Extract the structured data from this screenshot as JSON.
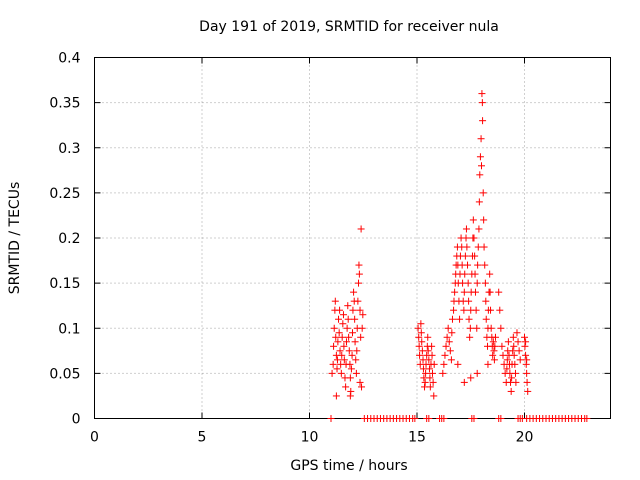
{
  "chart_data": {
    "type": "scatter",
    "title": "Day 191 of 2019, SRMTID for receiver nula",
    "xlabel": "GPS time / hours",
    "ylabel": "SRMTID / TECUs",
    "xlim": [
      0,
      24
    ],
    "ylim": [
      0,
      0.4
    ],
    "grid": true,
    "marker": "+",
    "marker_color": "#ff0000",
    "x_ticks": [
      0,
      5,
      10,
      15,
      20
    ],
    "x_tick_labels": [
      "0",
      "5",
      "10",
      "15",
      "20"
    ],
    "y_ticks": [
      0,
      0.05,
      0.1,
      0.15,
      0.2,
      0.25,
      0.3,
      0.35,
      0.4
    ],
    "y_tick_labels": [
      "0",
      "0.05",
      "0.1",
      "0.15",
      "0.2",
      "0.25",
      "0.3",
      "0.35",
      "0.4"
    ],
    "series": [
      {
        "name": "SRMTID",
        "points": [
          [
            11.0,
            0.0
          ],
          [
            12.55,
            0.0
          ],
          [
            12.7,
            0.0
          ],
          [
            12.85,
            0.0
          ],
          [
            13.0,
            0.0
          ],
          [
            13.15,
            0.0
          ],
          [
            13.3,
            0.0
          ],
          [
            13.45,
            0.0
          ],
          [
            13.6,
            0.0
          ],
          [
            13.75,
            0.0
          ],
          [
            13.9,
            0.0
          ],
          [
            14.05,
            0.0
          ],
          [
            14.2,
            0.0
          ],
          [
            14.35,
            0.0
          ],
          [
            14.5,
            0.0
          ],
          [
            14.65,
            0.0
          ],
          [
            14.8,
            0.0
          ],
          [
            14.9,
            0.0
          ],
          [
            15.45,
            0.0
          ],
          [
            15.55,
            0.0
          ],
          [
            16.05,
            0.0
          ],
          [
            16.15,
            0.0
          ],
          [
            16.25,
            0.0
          ],
          [
            17.55,
            0.0
          ],
          [
            17.65,
            0.0
          ],
          [
            18.8,
            0.0
          ],
          [
            18.9,
            0.0
          ],
          [
            19.7,
            0.0
          ],
          [
            19.8,
            0.0
          ],
          [
            19.9,
            0.0
          ],
          [
            20.1,
            0.0
          ],
          [
            20.25,
            0.0
          ],
          [
            20.4,
            0.0
          ],
          [
            20.55,
            0.0
          ],
          [
            20.7,
            0.0
          ],
          [
            20.85,
            0.0
          ],
          [
            21.0,
            0.0
          ],
          [
            21.15,
            0.0
          ],
          [
            21.3,
            0.0
          ],
          [
            21.45,
            0.0
          ],
          [
            21.6,
            0.0
          ],
          [
            21.75,
            0.0
          ],
          [
            21.9,
            0.0
          ],
          [
            22.05,
            0.0
          ],
          [
            22.2,
            0.0
          ],
          [
            22.35,
            0.0
          ],
          [
            22.5,
            0.0
          ],
          [
            22.65,
            0.0
          ],
          [
            22.8,
            0.0
          ],
          [
            22.9,
            0.0
          ],
          [
            11.05,
            0.05
          ],
          [
            11.1,
            0.06
          ],
          [
            11.12,
            0.08
          ],
          [
            11.15,
            0.1
          ],
          [
            11.18,
            0.12
          ],
          [
            11.2,
            0.13
          ],
          [
            11.22,
            0.09
          ],
          [
            11.25,
            0.07
          ],
          [
            11.28,
            0.055
          ],
          [
            11.3,
            0.065
          ],
          [
            11.32,
            0.085
          ],
          [
            11.35,
            0.11
          ],
          [
            11.38,
            0.095
          ],
          [
            11.4,
            0.12
          ],
          [
            11.42,
            0.075
          ],
          [
            11.45,
            0.06
          ],
          [
            11.48,
            0.05
          ],
          [
            11.5,
            0.07
          ],
          [
            11.52,
            0.09
          ],
          [
            11.55,
            0.105
          ],
          [
            11.58,
            0.115
          ],
          [
            11.6,
            0.08
          ],
          [
            11.62,
            0.065
          ],
          [
            11.65,
            0.045
          ],
          [
            11.68,
            0.035
          ],
          [
            11.7,
            0.06
          ],
          [
            11.72,
            0.085
          ],
          [
            11.75,
            0.1
          ],
          [
            11.78,
            0.125
          ],
          [
            11.8,
            0.11
          ],
          [
            11.82,
            0.09
          ],
          [
            11.85,
            0.075
          ],
          [
            11.88,
            0.06
          ],
          [
            11.9,
            0.045
          ],
          [
            11.92,
            0.03
          ],
          [
            11.95,
            0.055
          ],
          [
            11.98,
            0.07
          ],
          [
            12.0,
            0.095
          ],
          [
            12.02,
            0.12
          ],
          [
            12.05,
            0.14
          ],
          [
            12.08,
            0.13
          ],
          [
            12.1,
            0.11
          ],
          [
            12.12,
            0.085
          ],
          [
            12.15,
            0.065
          ],
          [
            12.18,
            0.05
          ],
          [
            12.2,
            0.075
          ],
          [
            12.22,
            0.1
          ],
          [
            12.25,
            0.13
          ],
          [
            12.28,
            0.15
          ],
          [
            12.3,
            0.17
          ],
          [
            12.32,
            0.16
          ],
          [
            12.35,
            0.12
          ],
          [
            12.38,
            0.09
          ],
          [
            12.4,
            0.21
          ],
          [
            12.42,
            0.035
          ],
          [
            12.45,
            0.1
          ],
          [
            12.48,
            0.115
          ],
          [
            11.25,
            0.025
          ],
          [
            11.9,
            0.025
          ],
          [
            12.35,
            0.04
          ],
          [
            15.05,
            0.1
          ],
          [
            15.08,
            0.09
          ],
          [
            15.1,
            0.08
          ],
          [
            15.12,
            0.07
          ],
          [
            15.15,
            0.06
          ],
          [
            15.18,
            0.105
          ],
          [
            15.2,
            0.095
          ],
          [
            15.22,
            0.085
          ],
          [
            15.25,
            0.075
          ],
          [
            15.28,
            0.065
          ],
          [
            15.3,
            0.055
          ],
          [
            15.32,
            0.045
          ],
          [
            15.35,
            0.035
          ],
          [
            15.38,
            0.04
          ],
          [
            15.4,
            0.05
          ],
          [
            15.42,
            0.06
          ],
          [
            15.45,
            0.07
          ],
          [
            15.48,
            0.08
          ],
          [
            15.5,
            0.09
          ],
          [
            15.52,
            0.075
          ],
          [
            15.55,
            0.065
          ],
          [
            15.58,
            0.055
          ],
          [
            15.6,
            0.045
          ],
          [
            15.62,
            0.035
          ],
          [
            15.65,
            0.06
          ],
          [
            15.68,
            0.08
          ],
          [
            15.7,
            0.07
          ],
          [
            15.72,
            0.05
          ],
          [
            15.75,
            0.04
          ],
          [
            15.78,
            0.025
          ],
          [
            15.8,
            0.06
          ],
          [
            16.2,
            0.05
          ],
          [
            16.25,
            0.06
          ],
          [
            16.3,
            0.07
          ],
          [
            16.35,
            0.08
          ],
          [
            16.4,
            0.09
          ],
          [
            16.45,
            0.1
          ],
          [
            16.5,
            0.085
          ],
          [
            16.55,
            0.075
          ],
          [
            16.6,
            0.065
          ],
          [
            16.62,
            0.095
          ],
          [
            16.65,
            0.11
          ],
          [
            16.7,
            0.12
          ],
          [
            16.72,
            0.13
          ],
          [
            16.75,
            0.14
          ],
          [
            16.78,
            0.15
          ],
          [
            16.8,
            0.16
          ],
          [
            16.82,
            0.17
          ],
          [
            16.85,
            0.18
          ],
          [
            16.88,
            0.19
          ],
          [
            16.9,
            0.17
          ],
          [
            16.92,
            0.15
          ],
          [
            16.95,
            0.13
          ],
          [
            16.98,
            0.11
          ],
          [
            17.0,
            0.16
          ],
          [
            17.02,
            0.18
          ],
          [
            17.05,
            0.2
          ],
          [
            17.08,
            0.19
          ],
          [
            17.1,
            0.17
          ],
          [
            17.12,
            0.15
          ],
          [
            17.15,
            0.13
          ],
          [
            17.18,
            0.12
          ],
          [
            17.2,
            0.14
          ],
          [
            17.22,
            0.16
          ],
          [
            17.25,
            0.18
          ],
          [
            17.28,
            0.2
          ],
          [
            17.3,
            0.21
          ],
          [
            17.32,
            0.19
          ],
          [
            17.35,
            0.17
          ],
          [
            17.38,
            0.15
          ],
          [
            17.4,
            0.13
          ],
          [
            17.42,
            0.11
          ],
          [
            17.45,
            0.09
          ],
          [
            17.48,
            0.1
          ],
          [
            17.5,
            0.12
          ],
          [
            17.52,
            0.14
          ],
          [
            17.55,
            0.16
          ],
          [
            17.58,
            0.18
          ],
          [
            17.6,
            0.2
          ],
          [
            17.62,
            0.22
          ],
          [
            17.65,
            0.2
          ],
          [
            17.68,
            0.18
          ],
          [
            17.7,
            0.16
          ],
          [
            17.72,
            0.14
          ],
          [
            17.75,
            0.12
          ],
          [
            17.78,
            0.1
          ],
          [
            17.8,
            0.15
          ],
          [
            17.82,
            0.17
          ],
          [
            17.85,
            0.19
          ],
          [
            17.88,
            0.21
          ],
          [
            17.9,
            0.24
          ],
          [
            17.92,
            0.27
          ],
          [
            17.95,
            0.29
          ],
          [
            17.98,
            0.31
          ],
          [
            18.0,
            0.28
          ],
          [
            18.02,
            0.36
          ],
          [
            18.04,
            0.35
          ],
          [
            18.05,
            0.33
          ],
          [
            18.08,
            0.25
          ],
          [
            18.1,
            0.22
          ],
          [
            18.12,
            0.19
          ],
          [
            18.15,
            0.17
          ],
          [
            18.18,
            0.15
          ],
          [
            18.2,
            0.13
          ],
          [
            18.22,
            0.11
          ],
          [
            18.25,
            0.09
          ],
          [
            18.28,
            0.08
          ],
          [
            18.3,
            0.1
          ],
          [
            18.32,
            0.12
          ],
          [
            18.35,
            0.14
          ],
          [
            18.38,
            0.16
          ],
          [
            18.4,
            0.14
          ],
          [
            18.42,
            0.12
          ],
          [
            18.45,
            0.1
          ],
          [
            18.48,
            0.09
          ],
          [
            18.5,
            0.08
          ],
          [
            18.52,
            0.07
          ],
          [
            18.55,
            0.085
          ],
          [
            18.58,
            0.075
          ],
          [
            18.6,
            0.065
          ],
          [
            18.62,
            0.08
          ],
          [
            18.65,
            0.09
          ],
          [
            17.5,
            0.045
          ],
          [
            17.2,
            0.04
          ],
          [
            16.9,
            0.06
          ],
          [
            17.8,
            0.05
          ],
          [
            18.3,
            0.06
          ],
          [
            18.8,
            0.14
          ],
          [
            18.85,
            0.12
          ],
          [
            18.9,
            0.1
          ],
          [
            18.95,
            0.08
          ],
          [
            19.0,
            0.07
          ],
          [
            19.05,
            0.06
          ],
          [
            19.1,
            0.05
          ],
          [
            19.15,
            0.04
          ],
          [
            19.18,
            0.055
          ],
          [
            19.2,
            0.065
          ],
          [
            19.22,
            0.075
          ],
          [
            19.25,
            0.085
          ],
          [
            19.28,
            0.07
          ],
          [
            19.3,
            0.06
          ],
          [
            19.32,
            0.05
          ],
          [
            19.35,
            0.04
          ],
          [
            19.38,
            0.03
          ],
          [
            19.4,
            0.045
          ],
          [
            19.42,
            0.06
          ],
          [
            19.45,
            0.075
          ],
          [
            19.48,
            0.09
          ],
          [
            19.5,
            0.08
          ],
          [
            19.52,
            0.07
          ],
          [
            19.55,
            0.06
          ],
          [
            19.58,
            0.05
          ],
          [
            19.6,
            0.04
          ],
          [
            19.65,
            0.095
          ],
          [
            19.7,
            0.085
          ],
          [
            19.75,
            0.075
          ],
          [
            19.8,
            0.065
          ],
          [
            20.0,
            0.09
          ],
          [
            20.02,
            0.08
          ],
          [
            20.05,
            0.07
          ],
          [
            20.08,
            0.06
          ],
          [
            20.1,
            0.05
          ],
          [
            20.12,
            0.04
          ],
          [
            20.15,
            0.03
          ],
          [
            20.05,
            0.085
          ],
          [
            20.1,
            0.065
          ]
        ]
      }
    ]
  }
}
